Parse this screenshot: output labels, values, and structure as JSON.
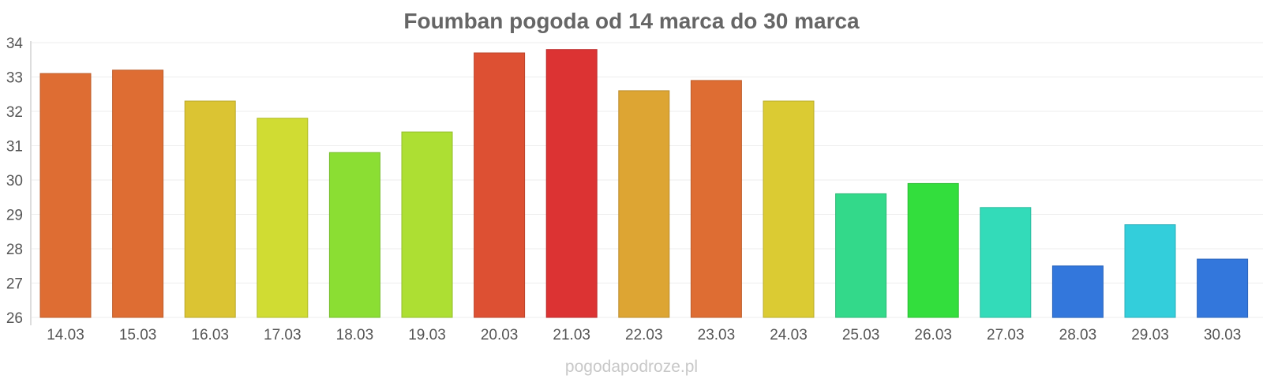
{
  "chart_data": {
    "type": "bar",
    "title": "Foumban pogoda od 14 marca do 30 marca",
    "xlabel": "",
    "ylabel": "",
    "ylim": [
      26,
      34
    ],
    "yticks": [
      26,
      27,
      28,
      29,
      30,
      31,
      32,
      33,
      34
    ],
    "grid": true,
    "legend": "none",
    "categories": [
      "14.03",
      "15.03",
      "16.03",
      "17.03",
      "18.03",
      "19.03",
      "20.03",
      "21.03",
      "22.03",
      "23.03",
      "24.03",
      "25.03",
      "26.03",
      "27.03",
      "28.03",
      "29.03",
      "30.03"
    ],
    "values": [
      33.1,
      33.2,
      32.3,
      31.8,
      30.8,
      31.4,
      33.7,
      33.8,
      32.6,
      32.9,
      32.3,
      29.6,
      29.9,
      29.2,
      27.5,
      28.7,
      27.7
    ],
    "colors": [
      "#de6d33",
      "#de6d33",
      "#dbc433",
      "#d0dc33",
      "#8bde33",
      "#addf33",
      "#dd5033",
      "#dc3333",
      "#dda533",
      "#de6d33",
      "#dbcb33",
      "#33d98a",
      "#33de3d",
      "#33dbb9",
      "#3377dc",
      "#33cedb",
      "#3377dc"
    ]
  },
  "watermark": "pogodapodroze.pl"
}
